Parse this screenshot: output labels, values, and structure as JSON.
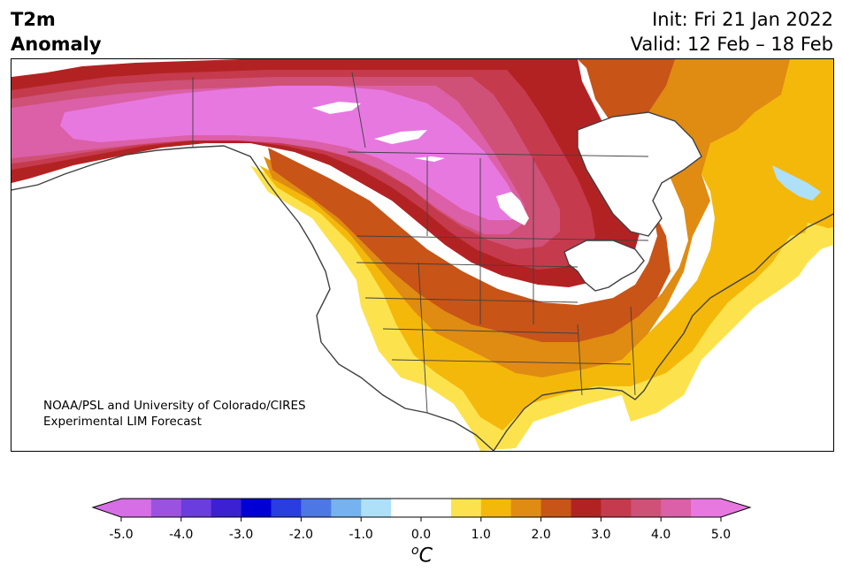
{
  "title": {
    "line1": "T2m",
    "line2": "Anomaly"
  },
  "init": {
    "line1": "Init: Fri 21 Jan 2022",
    "line2": "Valid: 12 Feb – 18 Feb"
  },
  "credit": {
    "line1": "NOAA/PSL and University of Colorado/CIRES",
    "line2": "Experimental LIM Forecast"
  },
  "colorbar": {
    "unit_sup": "o",
    "unit": "C",
    "ticks": [
      "-5.0",
      "-4.0",
      "-3.0",
      "-2.0",
      "-1.0",
      "0.0",
      "1.0",
      "2.0",
      "3.0",
      "4.0",
      "5.0"
    ],
    "colors": [
      "#d66ee6",
      "#9b52e0",
      "#6a3ddf",
      "#3c21d2",
      "#0000d4",
      "#2a3de0",
      "#4e77e6",
      "#76b2f0",
      "#aee0fa",
      "#ffffff",
      "#ffffff",
      "#fce34e",
      "#f4b80b",
      "#e08b12",
      "#c85418",
      "#b32223",
      "#c63a4d",
      "#cf5177",
      "#dc60a7",
      "#e778e0"
    ],
    "min_color": "#d66ee6",
    "max_color": "#e778e0"
  },
  "map": {
    "palette": {
      "c1": "#fce34e",
      "c15": "#f4b80b",
      "c2": "#e08b12",
      "c25": "#c85418",
      "c3": "#b32223",
      "c35": "#c63a4d",
      "c4": "#cf5177",
      "c45": "#dc60a7",
      "c5": "#e778e0",
      "cm1": "#aee0fa",
      "land": "#ffffff",
      "border": "#404040"
    }
  }
}
